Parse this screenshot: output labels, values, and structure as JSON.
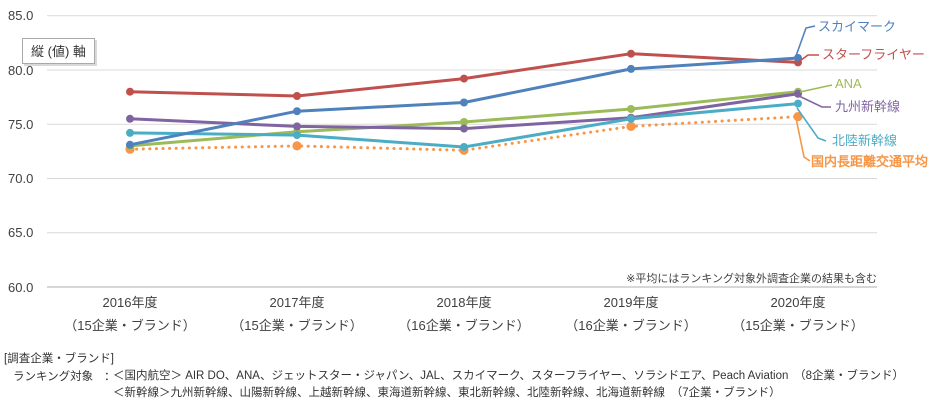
{
  "chart_data": {
    "type": "line",
    "title": "",
    "y_axis_title": "縦 (値) 軸",
    "xlabel": "",
    "ylabel": "縦 (値) 軸",
    "ylim": [
      60.0,
      85.0
    ],
    "yticks": [
      "85.0",
      "80.0",
      "75.0",
      "70.0",
      "65.0",
      "60.0"
    ],
    "grid": "horizontal",
    "legend_position": "right-callouts",
    "categories": [
      {
        "year": "2016年度",
        "brands": "（15企業・ブランド）"
      },
      {
        "year": "2017年度",
        "brands": "（15企業・ブランド）"
      },
      {
        "year": "2018年度",
        "brands": "（16企業・ブランド）"
      },
      {
        "year": "2019年度",
        "brands": "（16企業・ブランド）"
      },
      {
        "year": "2020年度",
        "brands": "（15企業・ブランド）"
      }
    ],
    "series": [
      {
        "name": "スカイマーク",
        "color": "#4F81BD",
        "style": "solid",
        "values": [
          73.1,
          76.2,
          77.0,
          80.1,
          81.1
        ]
      },
      {
        "name": "スターフライヤー",
        "color": "#C0504D",
        "style": "solid",
        "values": [
          78.0,
          77.6,
          79.2,
          81.5,
          80.7
        ]
      },
      {
        "name": "ANA",
        "color": "#9BBB59",
        "style": "solid",
        "values": [
          73.0,
          74.3,
          75.2,
          76.4,
          78.0
        ]
      },
      {
        "name": "九州新幹線",
        "color": "#8064A2",
        "style": "solid",
        "values": [
          75.5,
          74.8,
          74.6,
          75.6,
          77.8
        ]
      },
      {
        "name": "北陸新幹線",
        "color": "#4BACC6",
        "style": "solid",
        "values": [
          74.2,
          74.0,
          72.9,
          75.5,
          76.9
        ]
      },
      {
        "name": "国内長距離交通平均",
        "color": "#F79646",
        "style": "dotted",
        "bold": true,
        "values": [
          72.7,
          73.0,
          72.6,
          74.8,
          75.7
        ]
      }
    ],
    "note": "※平均にはランキング対象外調査企業の結果も含む"
  },
  "footer": {
    "heading": "[調査企業・ブランド]",
    "label": "ランキング対象",
    "colon": "：",
    "line1": "＜国内航空＞ AIR DO、ANA、ジェットスター・ジャパン、JAL、スカイマーク、スターフライヤー、ソラシドエア、Peach Aviation　（8企業・ブランド）",
    "line2": "＜新幹線＞九州新幹線、山陽新幹線、上越新幹線、東海道新幹線、東北新幹線、北陸新幹線、北海道新幹線　（7企業・ブランド）"
  }
}
